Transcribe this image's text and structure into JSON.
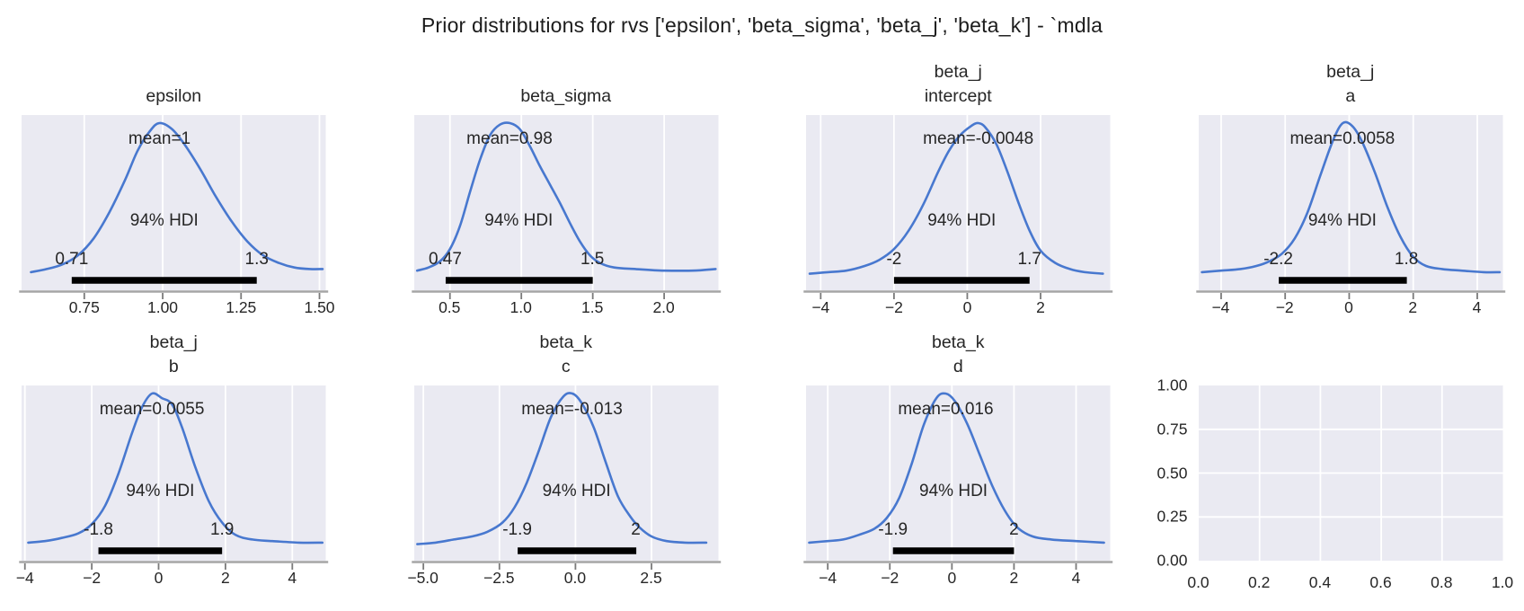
{
  "figure": {
    "title": "Prior distributions for rvs ['epsilon', 'beta_sigma', 'beta_j', 'beta_k'] - `mdla"
  },
  "colors": {
    "curve": "#4878cf",
    "plot_bg": "#eaeaf2",
    "grid_line": "#ffffff",
    "spine": "#a5a5a5",
    "tick_mark": "#7a7a7a",
    "hdi_bar": "#000000",
    "text": "#262626"
  },
  "chart_data": {
    "type": "line",
    "subtype": "kde_prior_grid",
    "title": "Prior distributions for rvs ['epsilon', 'beta_sigma', 'beta_j', 'beta_k'] - `mdla",
    "rows": 2,
    "cols": 4,
    "plots": [
      {
        "id": "epsilon",
        "title_lines": [
          "epsilon"
        ],
        "mean_label": "mean=1",
        "hdi_text": "94% HDI",
        "hdi_bounds": [
          0.71,
          1.3
        ],
        "hdi_bound_labels": [
          "0.71",
          "1.3"
        ],
        "xlim": [
          0.55,
          1.52
        ],
        "xticks": [
          0.75,
          1.0,
          1.25,
          1.5
        ],
        "xtick_labels": [
          "0.75",
          "1.00",
          "1.25",
          "1.50"
        ],
        "curve": [
          [
            0.58,
            0.03
          ],
          [
            0.63,
            0.05
          ],
          [
            0.68,
            0.08
          ],
          [
            0.73,
            0.14
          ],
          [
            0.78,
            0.25
          ],
          [
            0.83,
            0.42
          ],
          [
            0.88,
            0.63
          ],
          [
            0.92,
            0.82
          ],
          [
            0.96,
            0.95
          ],
          [
            0.99,
            1.0
          ],
          [
            1.03,
            0.96
          ],
          [
            1.07,
            0.86
          ],
          [
            1.12,
            0.7
          ],
          [
            1.17,
            0.52
          ],
          [
            1.22,
            0.36
          ],
          [
            1.27,
            0.23
          ],
          [
            1.32,
            0.14
          ],
          [
            1.37,
            0.09
          ],
          [
            1.42,
            0.06
          ],
          [
            1.47,
            0.05
          ],
          [
            1.51,
            0.05
          ]
        ]
      },
      {
        "id": "beta_sigma",
        "title_lines": [
          "beta_sigma"
        ],
        "mean_label": "mean=0.98",
        "hdi_text": "94% HDI",
        "hdi_bounds": [
          0.47,
          1.5
        ],
        "hdi_bound_labels": [
          "0.47",
          "1.5"
        ],
        "xlim": [
          0.25,
          2.38
        ],
        "xticks": [
          0.5,
          1.0,
          1.5,
          2.0
        ],
        "xtick_labels": [
          "0.5",
          "1.0",
          "1.5",
          "2.0"
        ],
        "curve": [
          [
            0.27,
            0.04
          ],
          [
            0.35,
            0.06
          ],
          [
            0.43,
            0.1
          ],
          [
            0.5,
            0.18
          ],
          [
            0.57,
            0.33
          ],
          [
            0.64,
            0.55
          ],
          [
            0.71,
            0.76
          ],
          [
            0.78,
            0.92
          ],
          [
            0.85,
            0.99
          ],
          [
            0.92,
            1.0
          ],
          [
            0.99,
            0.96
          ],
          [
            1.06,
            0.85
          ],
          [
            1.13,
            0.72
          ],
          [
            1.2,
            0.6
          ],
          [
            1.27,
            0.48
          ],
          [
            1.34,
            0.35
          ],
          [
            1.41,
            0.23
          ],
          [
            1.48,
            0.14
          ],
          [
            1.55,
            0.09
          ],
          [
            1.65,
            0.06
          ],
          [
            1.8,
            0.05
          ],
          [
            2.0,
            0.04
          ],
          [
            2.2,
            0.04
          ],
          [
            2.36,
            0.05
          ]
        ]
      },
      {
        "id": "beta_j_intercept",
        "title_lines": [
          "beta_j",
          "intercept"
        ],
        "mean_label": "mean=-0.0048",
        "hdi_text": "94% HDI",
        "hdi_bounds": [
          -2,
          1.7
        ],
        "hdi_bound_labels": [
          "-2",
          "1.7"
        ],
        "xlim": [
          -4.4,
          3.9
        ],
        "xticks": [
          -4,
          -2,
          0,
          2
        ],
        "xtick_labels": [
          "−4",
          "−2",
          "0",
          "2"
        ],
        "curve": [
          [
            -4.3,
            0.02
          ],
          [
            -3.8,
            0.03
          ],
          [
            -3.3,
            0.04
          ],
          [
            -2.8,
            0.07
          ],
          [
            -2.4,
            0.11
          ],
          [
            -2.0,
            0.18
          ],
          [
            -1.6,
            0.3
          ],
          [
            -1.2,
            0.47
          ],
          [
            -0.8,
            0.68
          ],
          [
            -0.5,
            0.82
          ],
          [
            -0.2,
            0.92
          ],
          [
            0.1,
            0.98
          ],
          [
            0.3,
            1.0
          ],
          [
            0.5,
            0.97
          ],
          [
            0.8,
            0.86
          ],
          [
            1.1,
            0.68
          ],
          [
            1.4,
            0.48
          ],
          [
            1.7,
            0.3
          ],
          [
            2.0,
            0.17
          ],
          [
            2.4,
            0.09
          ],
          [
            2.8,
            0.05
          ],
          [
            3.2,
            0.03
          ],
          [
            3.7,
            0.02
          ]
        ]
      },
      {
        "id": "beta_j_a",
        "title_lines": [
          "beta_j",
          "a"
        ],
        "mean_label": "mean=0.0058",
        "hdi_text": "94% HDI",
        "hdi_bounds": [
          -2.2,
          1.8
        ],
        "hdi_bound_labels": [
          "-2.2",
          "1.8"
        ],
        "xlim": [
          -4.7,
          4.8
        ],
        "xticks": [
          -4,
          -2,
          0,
          2,
          4
        ],
        "xtick_labels": [
          "−4",
          "−2",
          "0",
          "2",
          "4"
        ],
        "curve": [
          [
            -4.6,
            0.03
          ],
          [
            -4.0,
            0.04
          ],
          [
            -3.4,
            0.05
          ],
          [
            -2.9,
            0.07
          ],
          [
            -2.5,
            0.1
          ],
          [
            -2.1,
            0.15
          ],
          [
            -1.7,
            0.25
          ],
          [
            -1.3,
            0.42
          ],
          [
            -0.9,
            0.66
          ],
          [
            -0.5,
            0.89
          ],
          [
            -0.2,
            1.0
          ],
          [
            0.1,
            0.98
          ],
          [
            0.4,
            0.88
          ],
          [
            0.8,
            0.68
          ],
          [
            1.2,
            0.45
          ],
          [
            1.6,
            0.26
          ],
          [
            2.0,
            0.13
          ],
          [
            2.4,
            0.07
          ],
          [
            2.9,
            0.05
          ],
          [
            3.5,
            0.04
          ],
          [
            4.2,
            0.03
          ],
          [
            4.7,
            0.03
          ]
        ]
      },
      {
        "id": "beta_j_b",
        "title_lines": [
          "beta_j",
          "b"
        ],
        "mean_label": "mean=0.0055",
        "hdi_text": "94% HDI",
        "hdi_bounds": [
          -1.8,
          1.9
        ],
        "hdi_bound_labels": [
          "-1.8",
          "1.9"
        ],
        "xlim": [
          -4.1,
          5.0
        ],
        "xticks": [
          -4,
          -2,
          0,
          2,
          4
        ],
        "xtick_labels": [
          "−4",
          "−2",
          "0",
          "2",
          "4"
        ],
        "curve": [
          [
            -3.9,
            0.03
          ],
          [
            -3.4,
            0.04
          ],
          [
            -2.9,
            0.06
          ],
          [
            -2.4,
            0.09
          ],
          [
            -2.0,
            0.15
          ],
          [
            -1.6,
            0.27
          ],
          [
            -1.2,
            0.48
          ],
          [
            -0.8,
            0.74
          ],
          [
            -0.5,
            0.91
          ],
          [
            -0.2,
            1.0
          ],
          [
            0.1,
            0.97
          ],
          [
            0.4,
            0.93
          ],
          [
            0.7,
            0.78
          ],
          [
            1.1,
            0.52
          ],
          [
            1.5,
            0.3
          ],
          [
            1.9,
            0.16
          ],
          [
            2.3,
            0.08
          ],
          [
            2.8,
            0.05
          ],
          [
            3.4,
            0.04
          ],
          [
            4.2,
            0.03
          ],
          [
            4.9,
            0.03
          ]
        ]
      },
      {
        "id": "beta_k_c",
        "title_lines": [
          "beta_k",
          "c"
        ],
        "mean_label": "mean=-0.013",
        "hdi_text": "94% HDI",
        "hdi_bounds": [
          -1.9,
          2
        ],
        "hdi_bound_labels": [
          "-1.9",
          "2"
        ],
        "xlim": [
          -5.3,
          4.7
        ],
        "xticks": [
          -5.0,
          -2.5,
          0.0,
          2.5
        ],
        "xtick_labels": [
          "−5.0",
          "−2.5",
          "0.0",
          "2.5"
        ],
        "curve": [
          [
            -5.2,
            0.02
          ],
          [
            -4.6,
            0.03
          ],
          [
            -4.0,
            0.05
          ],
          [
            -3.4,
            0.07
          ],
          [
            -2.9,
            0.1
          ],
          [
            -2.4,
            0.16
          ],
          [
            -2.0,
            0.26
          ],
          [
            -1.6,
            0.42
          ],
          [
            -1.2,
            0.63
          ],
          [
            -0.8,
            0.85
          ],
          [
            -0.4,
            0.98
          ],
          [
            -0.1,
            1.0
          ],
          [
            0.2,
            0.94
          ],
          [
            0.6,
            0.78
          ],
          [
            1.0,
            0.55
          ],
          [
            1.4,
            0.33
          ],
          [
            1.8,
            0.2
          ],
          [
            2.1,
            0.13
          ],
          [
            2.5,
            0.07
          ],
          [
            3.0,
            0.04
          ],
          [
            3.6,
            0.03
          ],
          [
            4.3,
            0.03
          ]
        ]
      },
      {
        "id": "beta_k_d",
        "title_lines": [
          "beta_k",
          "d"
        ],
        "mean_label": "mean=0.016",
        "hdi_text": "94% HDI",
        "hdi_bounds": [
          -1.9,
          2
        ],
        "hdi_bound_labels": [
          "-1.9",
          "2"
        ],
        "xlim": [
          -4.7,
          5.1
        ],
        "xticks": [
          -4,
          -2,
          0,
          2,
          4
        ],
        "xtick_labels": [
          "−4",
          "−2",
          "0",
          "2",
          "4"
        ],
        "curve": [
          [
            -4.6,
            0.03
          ],
          [
            -4.0,
            0.04
          ],
          [
            -3.5,
            0.05
          ],
          [
            -3.0,
            0.08
          ],
          [
            -2.5,
            0.12
          ],
          [
            -2.1,
            0.19
          ],
          [
            -1.7,
            0.32
          ],
          [
            -1.3,
            0.54
          ],
          [
            -0.9,
            0.8
          ],
          [
            -0.5,
            0.97
          ],
          [
            -0.2,
            1.0
          ],
          [
            0.1,
            0.95
          ],
          [
            0.5,
            0.8
          ],
          [
            0.9,
            0.6
          ],
          [
            1.3,
            0.4
          ],
          [
            1.7,
            0.24
          ],
          [
            2.1,
            0.13
          ],
          [
            2.6,
            0.07
          ],
          [
            3.2,
            0.05
          ],
          [
            4.0,
            0.04
          ],
          [
            4.9,
            0.03
          ]
        ]
      },
      {
        "id": "empty_axes",
        "empty": true,
        "title_lines": [],
        "xlim": [
          0,
          1
        ],
        "ylim": [
          0,
          1
        ],
        "xticks": [
          0,
          0.2,
          0.4,
          0.6,
          0.8,
          1.0
        ],
        "xtick_labels": [
          "0.0",
          "0.2",
          "0.4",
          "0.6",
          "0.8",
          "1.0"
        ],
        "yticks": [
          0,
          0.25,
          0.5,
          0.75,
          1.0
        ],
        "ytick_labels": [
          "0.00",
          "0.25",
          "0.50",
          "0.75",
          "1.00"
        ]
      }
    ]
  }
}
